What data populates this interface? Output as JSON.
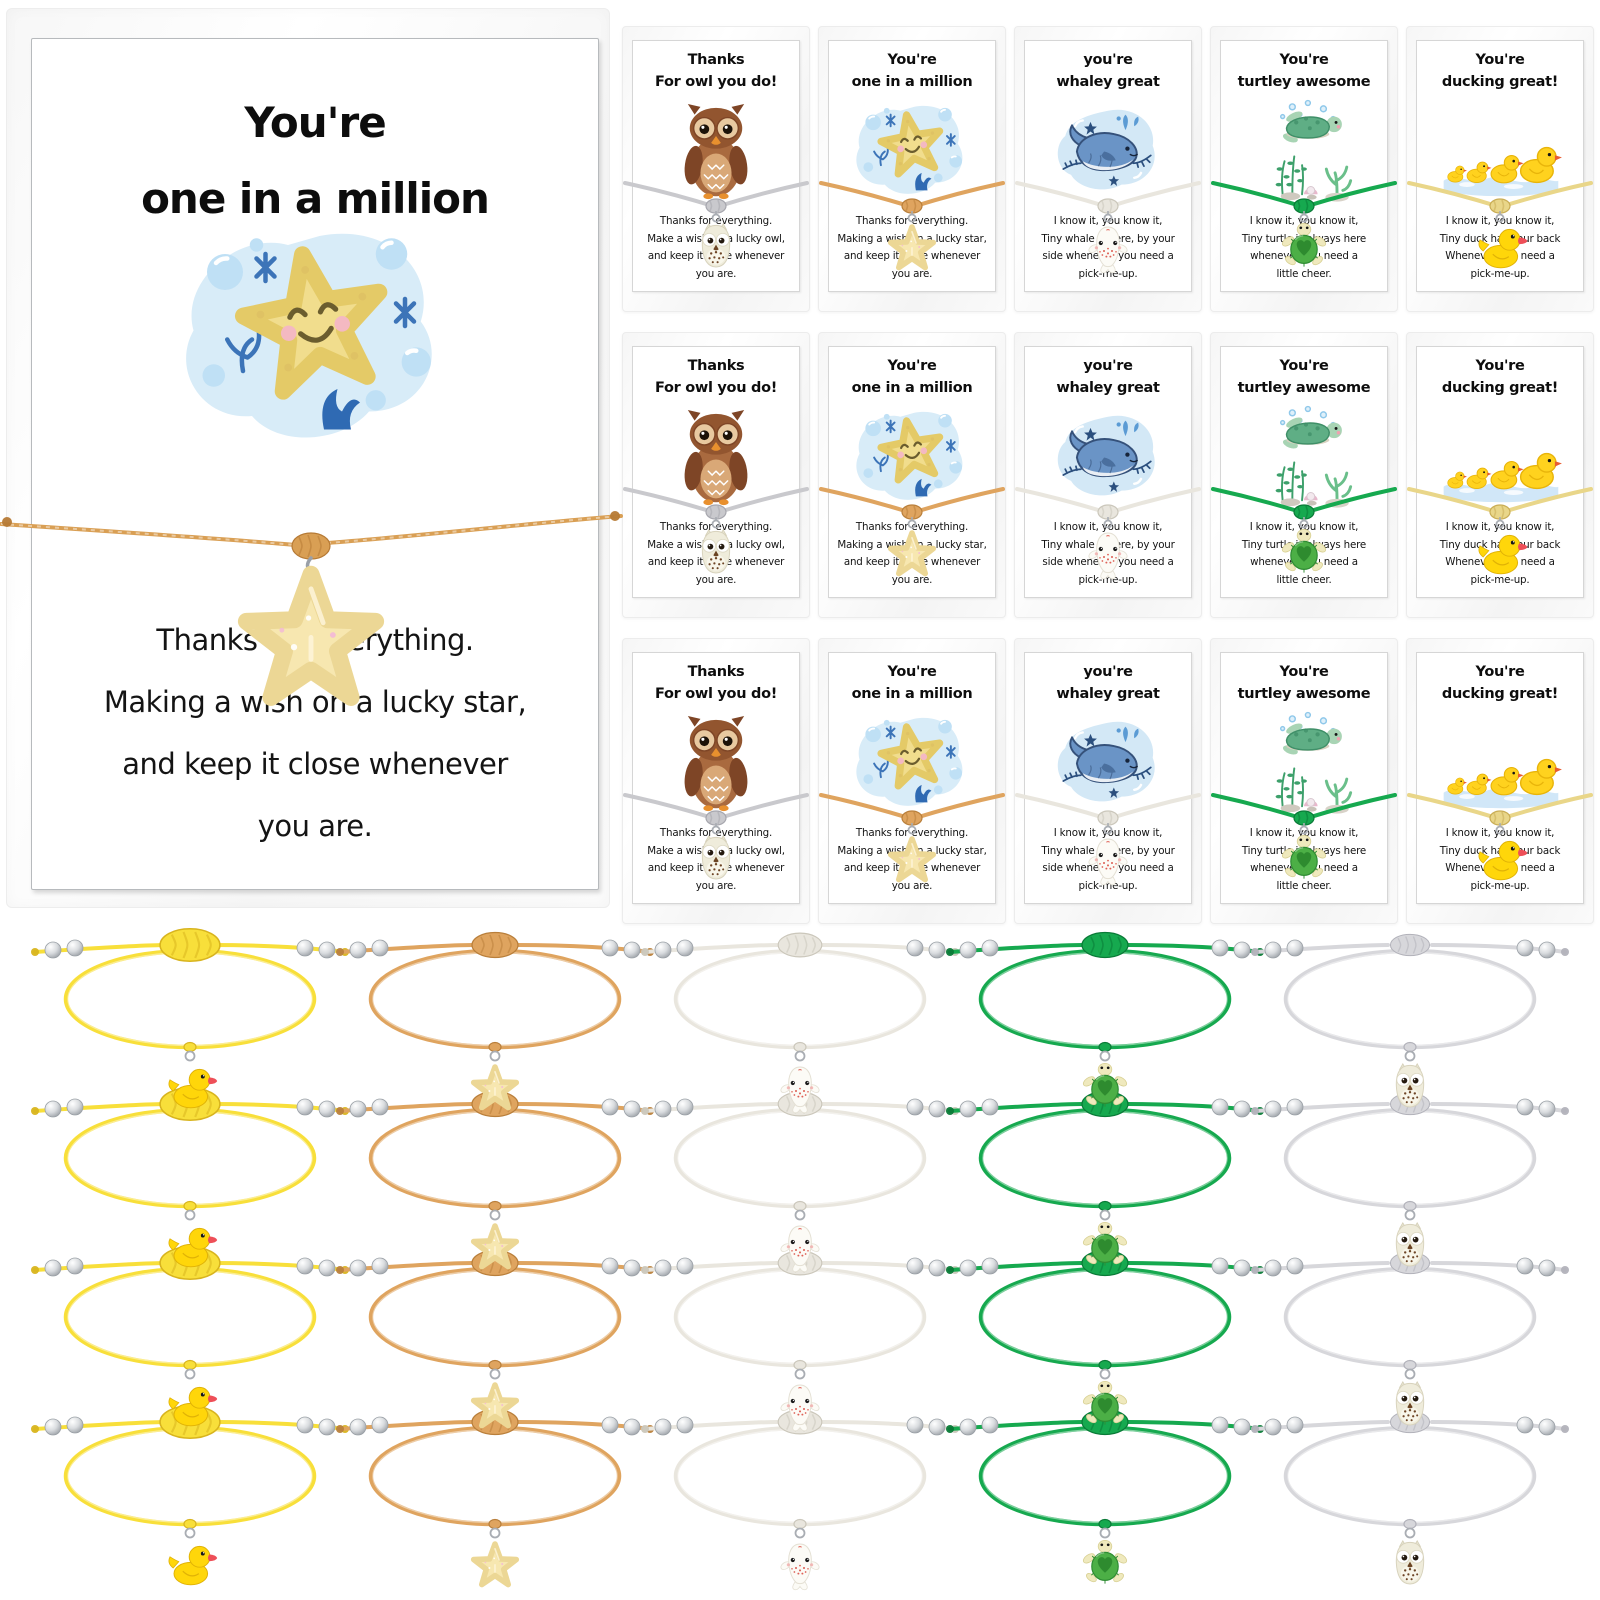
{
  "collage": {
    "background": "#ffffff",
    "bead_color": "#c9ccd1",
    "ring_color": "#a9adb3"
  },
  "main_card": {
    "title_line1": "You're",
    "title_line2": "one in a million",
    "message_lines": [
      "Thanks for everything.",
      "Making a wish on a lucky star,",
      "and keep it close whenever",
      "you are."
    ],
    "cord_color": "#d99f54",
    "cord_dark": "#b67a35",
    "charm": "starfish",
    "illustration": "starfish"
  },
  "types": {
    "owl": {
      "title_line1": "Thanks",
      "title_line2": "For owl you do!",
      "message_lines": [
        "Thanks for everything.",
        "Make a wish on a lucky owl,",
        "and keep it close whenever",
        "you are."
      ],
      "cord_card": "#c9c9cd",
      "cord_card_dark": "#a7a7ae",
      "cord_bracelet": "#d7d7db",
      "cord_bracelet_dark": "#b2b2ba",
      "knot_scale": 0.85,
      "charm": "owl"
    },
    "starfish": {
      "title_line1": "You're",
      "title_line2": "one in a million",
      "message_lines": [
        "Thanks for everything.",
        "Making a wish on a lucky star,",
        "and keep it close whenever",
        "you are."
      ],
      "cord_card": "#dfa45f",
      "cord_card_dark": "#b97f3b",
      "cord_bracelet": "#dfa45f",
      "cord_bracelet_dark": "#b97f3b",
      "knot_scale": 1.0,
      "charm": "starfish"
    },
    "whale": {
      "title_line1": "you're",
      "title_line2": "whaley great",
      "message_lines": [
        "I know it, you know it,",
        "Tiny whale is here, by your",
        "side whenever you need a",
        "pick-me-up."
      ],
      "cord_card": "#e9e6de",
      "cord_card_dark": "#cbc7bb",
      "cord_bracelet": "#e9e6de",
      "cord_bracelet_dark": "#cbc7bb",
      "knot_scale": 0.95,
      "charm": "whale"
    },
    "turtle": {
      "title_line1": "You're",
      "title_line2": "turtley awesome",
      "message_lines": [
        "I know it, you know it,",
        "Tiny turtle is always here",
        "whenever you need a",
        "little cheer."
      ],
      "cord_card": "#16a94f",
      "cord_card_dark": "#0a7a37",
      "cord_bracelet": "#16a94f",
      "cord_bracelet_dark": "#0a7a37",
      "knot_scale": 1.0,
      "charm": "turtle"
    },
    "duck": {
      "title_line1": "You're",
      "title_line2": "ducking great!",
      "message_lines": [
        "I know it, you know it,",
        "Tiny duck has your back",
        "Whenever you need a",
        "pick-me-up."
      ],
      "cord_card": "#e9d689",
      "cord_card_dark": "#c9ad55",
      "cord_bracelet": "#f8df3a",
      "cord_bracelet_dark": "#d8b41e",
      "knot_scale": 1.3,
      "charm": "duck"
    }
  },
  "card_grid": {
    "rows": 3,
    "column_order": [
      "owl",
      "starfish",
      "whale",
      "turtle",
      "duck"
    ]
  },
  "bracelet_grid": {
    "rows": 4,
    "column_order": [
      "duck",
      "starfish",
      "whale",
      "turtle",
      "owl"
    ]
  }
}
